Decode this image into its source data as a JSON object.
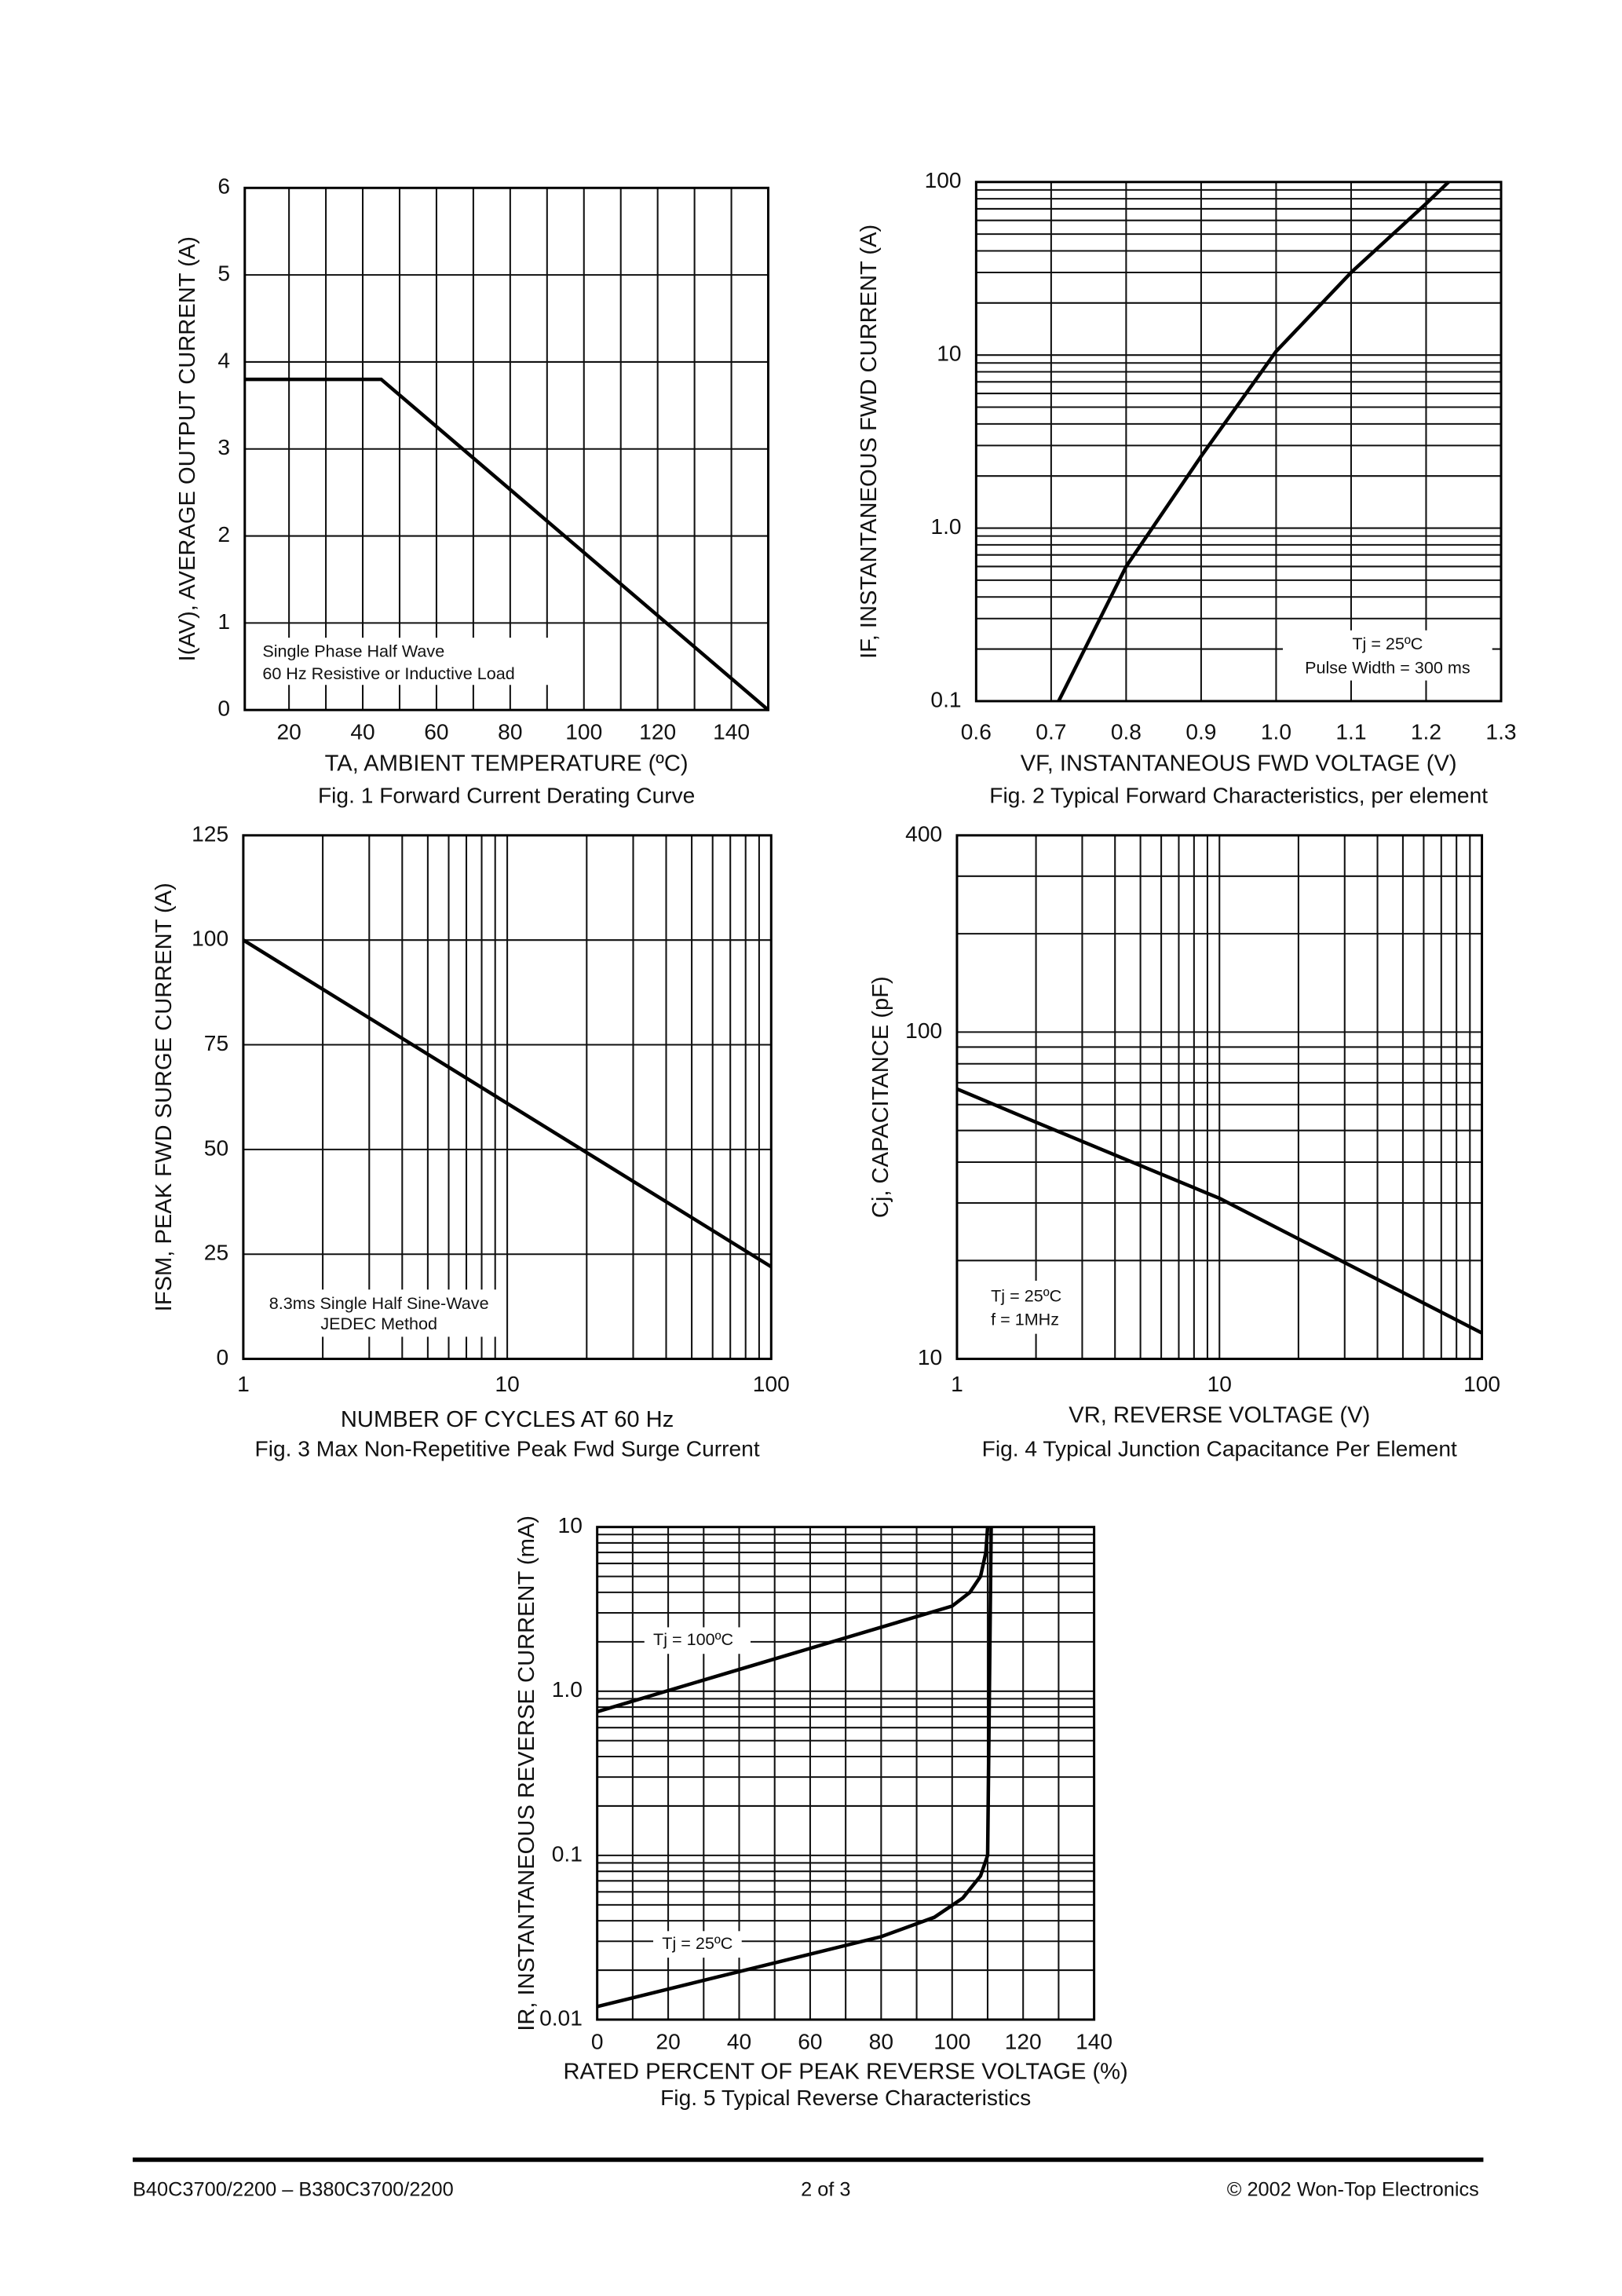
{
  "chart_data": [
    {
      "type": "line",
      "title": "Fig. 1  Forward Current Derating Curve",
      "xlabel": "TA, AMBIENT TEMPERATURE (ºC)",
      "ylabel": "I(AV), AVERAGE OUTPUT CURRENT (A)",
      "xlim": [
        8,
        150
      ],
      "xticks": [
        20,
        40,
        60,
        80,
        100,
        120,
        140
      ],
      "xminor": [
        30,
        50,
        70,
        90,
        110,
        130
      ],
      "ylim": [
        0,
        6
      ],
      "yticks": [
        0,
        1,
        2,
        3,
        4,
        5,
        6
      ],
      "grid": true,
      "annotations": [
        "Single Phase Half Wave",
        "60 Hz Resistive or Inductive Load"
      ],
      "series": [
        {
          "color": "#000000",
          "x": [
            8,
            45,
            150
          ],
          "values": [
            3.8,
            3.8,
            0
          ]
        }
      ]
    },
    {
      "type": "line",
      "title": "Fig. 2  Typical Forward Characteristics, per element",
      "xlabel": "VF, INSTANTANEOUS FWD VOLTAGE (V)",
      "ylabel": "IF, INSTANTANEOUS FWD CURRENT (A)",
      "xlim": [
        0.6,
        1.3
      ],
      "xticks": [
        0.6,
        0.7,
        0.8,
        0.9,
        {
          "value": 1,
          "label": "1.0"
        },
        1.1,
        1.2,
        1.3
      ],
      "ylim": [
        0.1,
        100
      ],
      "yscale": "log",
      "yticks": [
        0.1,
        {
          "value": 1,
          "label": "1.0"
        },
        10,
        100
      ],
      "yminor": [
        0.2,
        0.3,
        0.4,
        0.5,
        0.6,
        0.7,
        0.8,
        0.9,
        2,
        3,
        4,
        5,
        6,
        7,
        8,
        9,
        20,
        30,
        40,
        50,
        60,
        70,
        80,
        90
      ],
      "grid": true,
      "annotations": [
        "Tj = 25ºC",
        "Pulse Width = 300 ms"
      ],
      "series": [
        {
          "color": "#000000",
          "x": [
            0.71,
            0.8,
            0.9,
            1.0,
            1.1,
            1.2,
            1.23
          ],
          "values": [
            0.1,
            0.6,
            2.6,
            10.5,
            30,
            75,
            100
          ]
        }
      ]
    },
    {
      "type": "line",
      "title": "Fig. 3  Max Non-Repetitive Peak Fwd Surge Current",
      "xlabel": "NUMBER OF CYCLES AT 60 Hz",
      "ylabel": "IFSM, PEAK FWD SURGE CURRENT (A)",
      "xlim": [
        1,
        100
      ],
      "xscale": "log",
      "xticks": [
        1,
        10,
        100
      ],
      "xminor": [
        2,
        3,
        4,
        5,
        6,
        7,
        8,
        9,
        20,
        30,
        40,
        50,
        60,
        70,
        80,
        90
      ],
      "ylim": [
        0,
        125
      ],
      "yticks": [
        0,
        25,
        50,
        75,
        100,
        125
      ],
      "grid": true,
      "annotations": [
        "8.3ms Single Half Sine-Wave",
        "JEDEC Method"
      ],
      "series": [
        {
          "color": "#000000",
          "x": [
            1,
            100
          ],
          "values": [
            100,
            22
          ]
        }
      ]
    },
    {
      "type": "line",
      "title": "Fig. 4  Typical Junction Capacitance Per Element",
      "xlabel": "VR, REVERSE VOLTAGE (V)",
      "ylabel": "Cj, CAPACITANCE (pF)",
      "xlim": [
        1,
        100
      ],
      "xscale": "log",
      "xticks": [
        1,
        10,
        100
      ],
      "xminor": [
        2,
        3,
        4,
        5,
        6,
        7,
        8,
        9,
        20,
        30,
        40,
        50,
        60,
        70,
        80,
        90
      ],
      "ylim": [
        10,
        400
      ],
      "yscale": "log",
      "yticks": [
        10,
        100,
        400
      ],
      "yminor": [
        20,
        30,
        40,
        50,
        60,
        70,
        80,
        90,
        200,
        300
      ],
      "grid": true,
      "annotations": [
        "Tj = 25ºC",
        "f = 1MHz"
      ],
      "series": [
        {
          "color": "#000000",
          "x": [
            1,
            2,
            10,
            100
          ],
          "values": [
            67,
            53,
            31,
            12
          ]
        }
      ]
    },
    {
      "type": "line",
      "title": "Fig. 5  Typical Reverse Characteristics",
      "xlabel": "RATED PERCENT OF PEAK REVERSE VOLTAGE (%)",
      "ylabel": "IR, INSTANTANEOUS REVERSE CURRENT (mA)",
      "xlim": [
        0,
        140
      ],
      "xticks": [
        0,
        20,
        40,
        60,
        80,
        100,
        120,
        140
      ],
      "xminor": [
        10,
        30,
        50,
        70,
        90,
        110,
        130
      ],
      "ylim": [
        0.01,
        10
      ],
      "yscale": "log",
      "yticks": [
        0.01,
        0.1,
        {
          "value": 1,
          "label": "1.0"
        },
        10
      ],
      "yminor": [
        0.02,
        0.03,
        0.04,
        0.05,
        0.06,
        0.07,
        0.08,
        0.09,
        0.2,
        0.3,
        0.4,
        0.5,
        0.6,
        0.7,
        0.8,
        0.9,
        2,
        3,
        4,
        5,
        6,
        7,
        8,
        9
      ],
      "grid": true,
      "annotations": [
        "Tj = 100ºC",
        "Tj = 25ºC"
      ],
      "series": [
        {
          "color": "#000000",
          "x": [
            0,
            100,
            105,
            108,
            109.5,
            110
          ],
          "values": [
            0.75,
            3.3,
            4,
            5,
            7,
            10
          ]
        },
        {
          "color": "#000000",
          "x": [
            0,
            80,
            95,
            103,
            108,
            110,
            111
          ],
          "values": [
            0.012,
            0.032,
            0.042,
            0.055,
            0.075,
            0.1,
            10
          ]
        }
      ]
    }
  ],
  "footer": {
    "left": "B40C3700/2200 – B380C3700/2200",
    "center": "2 of 3",
    "right": "© 2002 Won-Top Electronics"
  }
}
